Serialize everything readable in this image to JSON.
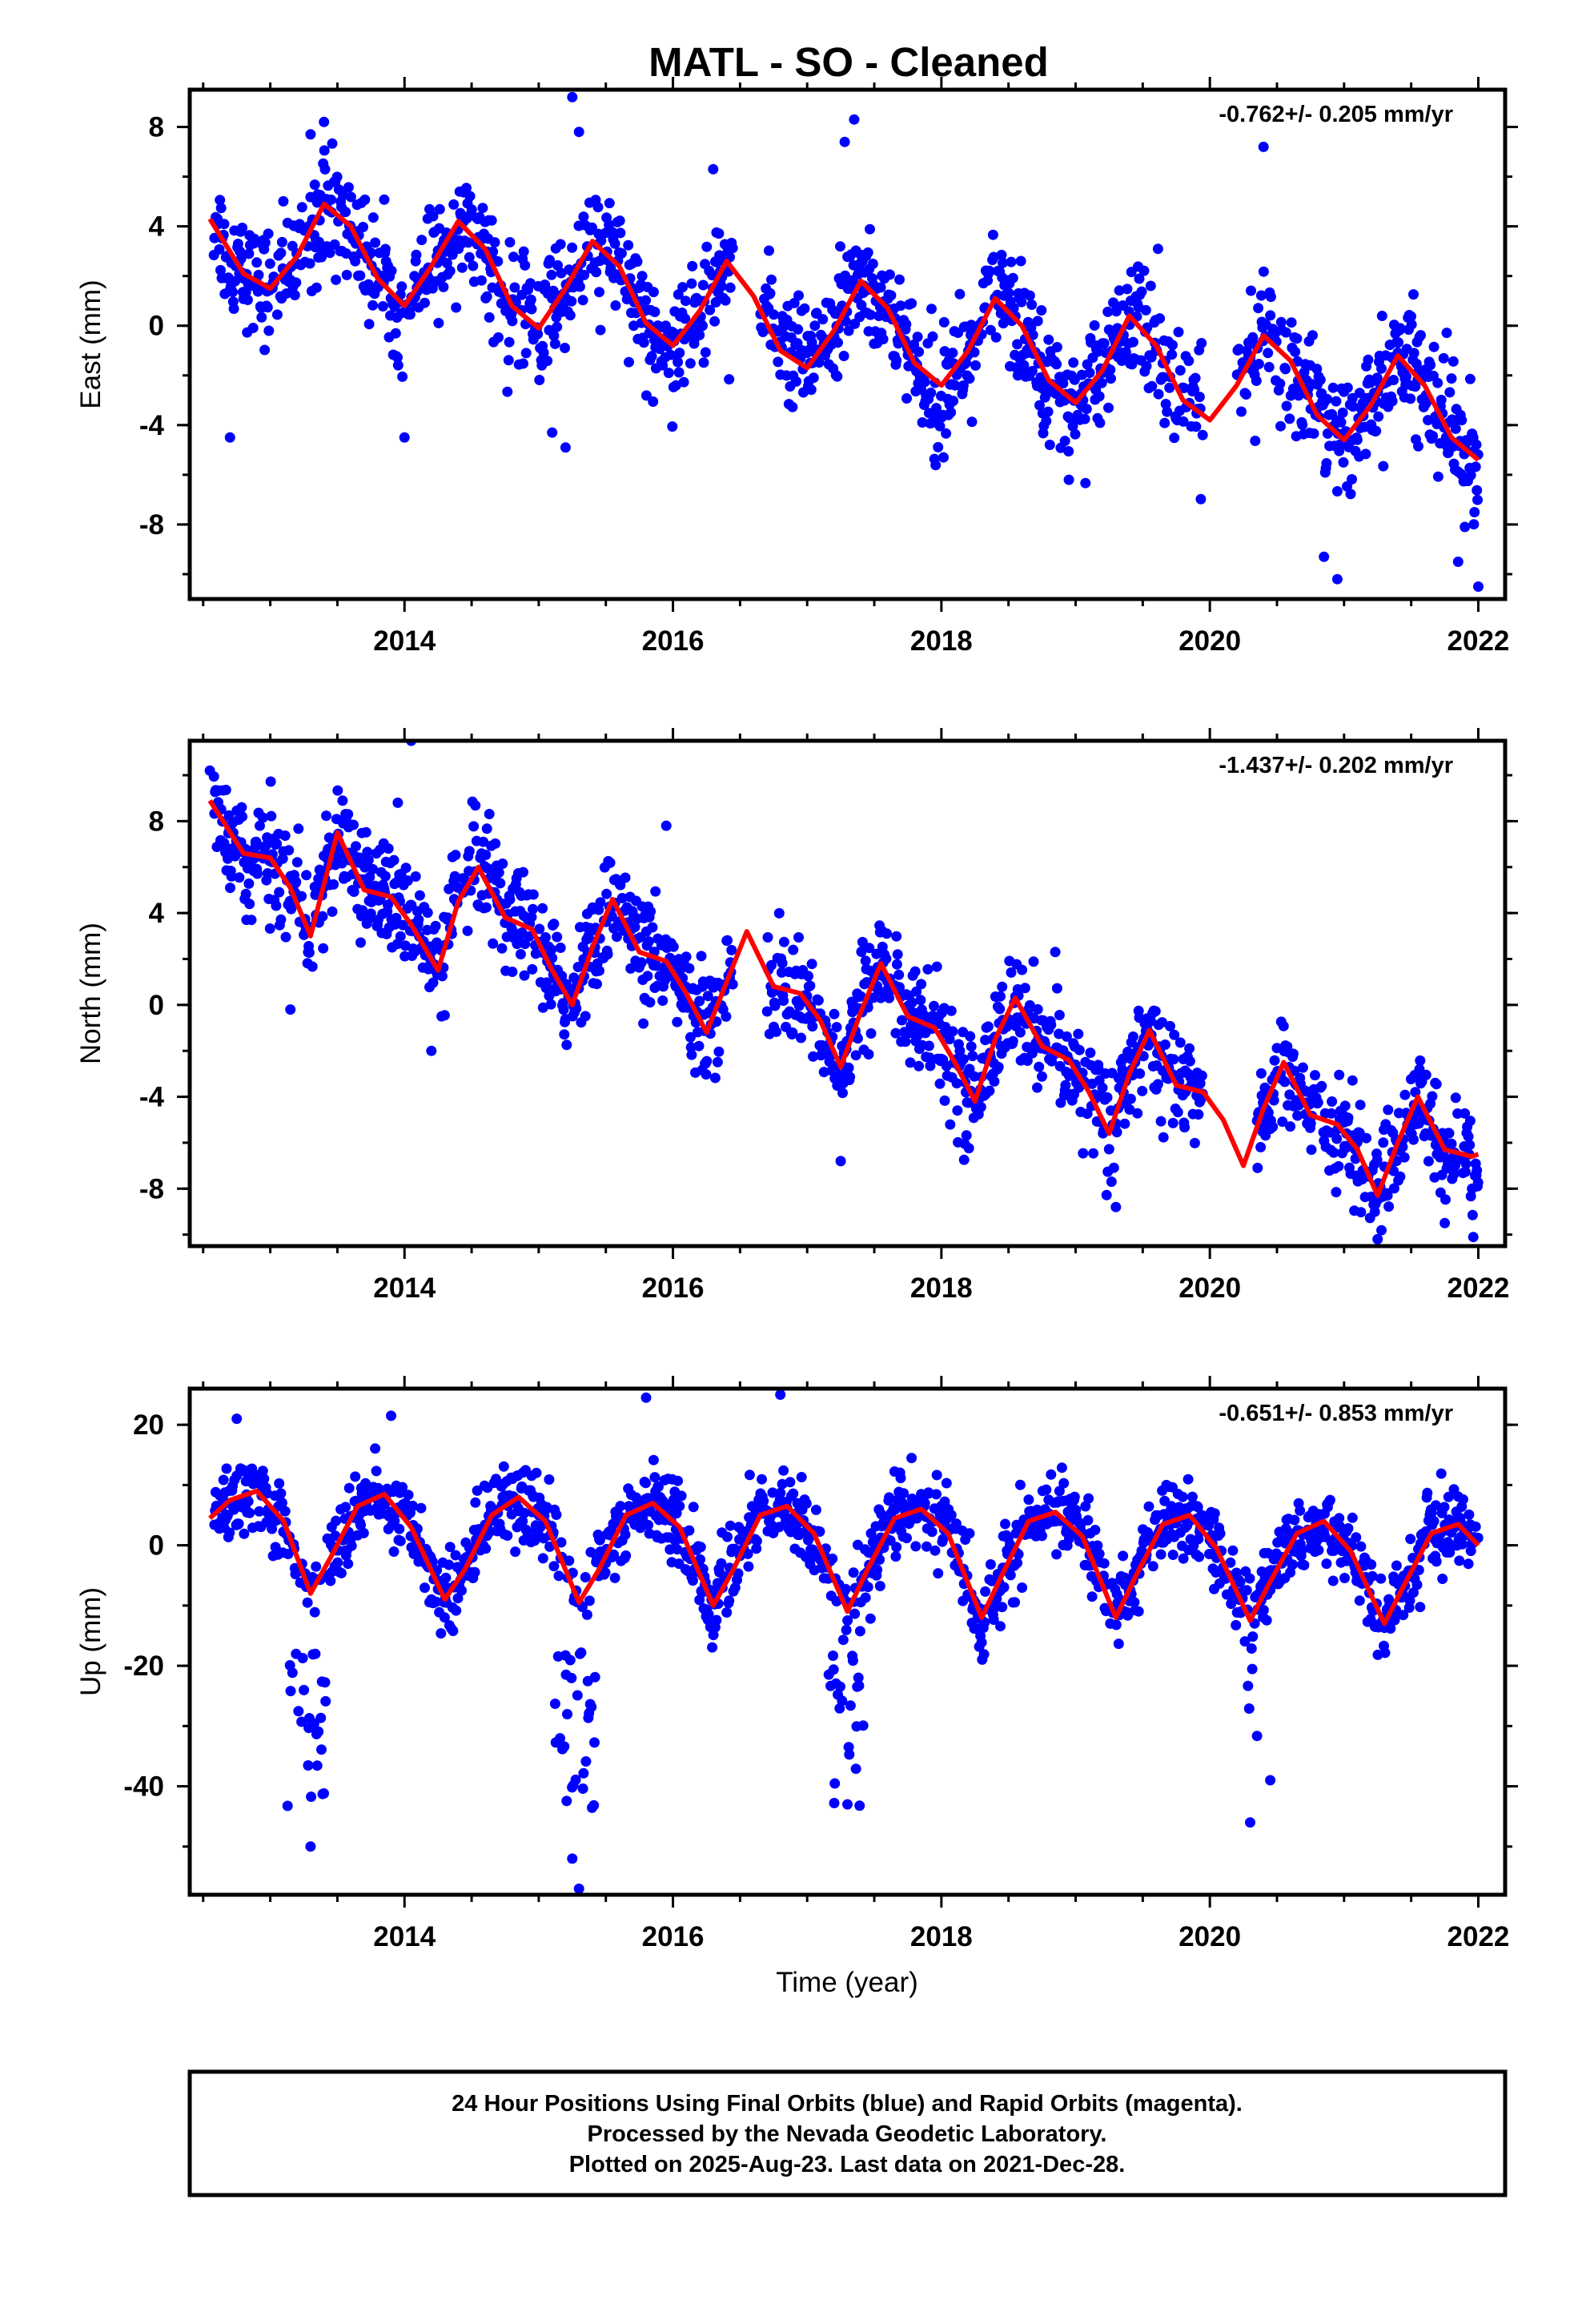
{
  "title": "MATL  - SO - Cleaned",
  "xlabel": "Time (year)",
  "colors": {
    "points": "#0000ff",
    "fit": "#ff0000",
    "frame": "#000000"
  },
  "footer": {
    "line1": "24 Hour Positions Using Final Orbits (blue) and Rapid Orbits (magenta).",
    "line2": "Processed by the Nevada Geodetic Laboratory.",
    "line3": "Plotted on 2025-Aug-23. Last data on 2021-Dec-28."
  },
  "chart_data": [
    {
      "type": "scatter",
      "ylabel": "East (mm)",
      "rate_label": "-0.762+/- 0.205 mm/yr",
      "xlim": [
        2012.4,
        2022.2
      ],
      "ylim": [
        -11,
        9.5
      ],
      "xticks": [
        "2014",
        "2016",
        "2018",
        "2020",
        "2022"
      ],
      "yticks": [
        "8",
        "4",
        "0",
        "-4",
        "-8"
      ],
      "trend": {
        "slope_mm_per_yr": -0.762,
        "start_value": 2.0,
        "start_year": 2012.55,
        "end_year": 2022.0
      },
      "fit_x": [
        2012.55,
        2012.8,
        2013.0,
        2013.2,
        2013.4,
        2013.6,
        2013.8,
        2014.0,
        2014.2,
        2014.4,
        2014.6,
        2014.8,
        2015.0,
        2015.2,
        2015.4,
        2015.6,
        2015.8,
        2016.0,
        2016.2,
        2016.4,
        2016.6,
        2016.8,
        2017.0,
        2017.2,
        2017.4,
        2017.6,
        2017.8,
        2018.0,
        2018.2,
        2018.4,
        2018.6,
        2018.8,
        2019.0,
        2019.2,
        2019.4,
        2019.6,
        2019.8,
        2020.0,
        2020.2,
        2020.4,
        2020.6,
        2020.8,
        2021.0,
        2021.2,
        2021.4,
        2021.6,
        2021.8,
        2022.0
      ],
      "fit_y": [
        4.3,
        2.1,
        1.5,
        2.8,
        4.9,
        4.0,
        1.9,
        0.8,
        2.4,
        4.2,
        3.1,
        0.8,
        -0.1,
        1.5,
        3.4,
        2.4,
        0.1,
        -0.8,
        0.6,
        2.6,
        1.2,
        -1.0,
        -1.7,
        -0.2,
        1.8,
        0.7,
        -1.5,
        -2.4,
        -1.0,
        1.1,
        0.0,
        -2.2,
        -3.1,
        -1.8,
        0.4,
        -0.8,
        -3.0,
        -3.8,
        -2.4,
        -0.4,
        -1.4,
        -3.6,
        -4.6,
        -3.2,
        -1.2,
        -2.4,
        -4.5,
        -5.4
      ],
      "outliers": [
        [
          2013.3,
          7.7
        ],
        [
          2013.4,
          8.2
        ],
        [
          2015.25,
          9.2
        ],
        [
          2015.3,
          7.8
        ],
        [
          2016.3,
          6.3
        ],
        [
          2017.35,
          8.3
        ],
        [
          2017.28,
          7.4
        ],
        [
          2020.4,
          7.2
        ],
        [
          2012.7,
          -4.5
        ],
        [
          2014.0,
          -4.5
        ],
        [
          2015.2,
          -4.9
        ],
        [
          2015.1,
          -4.3
        ],
        [
          2018.95,
          -6.2
        ],
        [
          2020.95,
          -10.2
        ],
        [
          2020.85,
          -9.3
        ],
        [
          2021.85,
          -9.5
        ],
        [
          2022.0,
          -10.5
        ],
        [
          2021.9,
          -8.1
        ]
      ]
    },
    {
      "type": "scatter",
      "ylabel": "North (mm)",
      "rate_label": "-1.437+/- 0.202 mm/yr",
      "xlim": [
        2012.4,
        2022.2
      ],
      "ylim": [
        -10.5,
        11.5
      ],
      "xticks": [
        "2014",
        "2016",
        "2018",
        "2020",
        "2022"
      ],
      "yticks": [
        "8",
        "4",
        "0",
        "-4",
        "-8"
      ],
      "trend": {
        "slope_mm_per_yr": -1.437,
        "start_value": 7.0,
        "start_year": 2012.55,
        "end_year": 2022.0
      },
      "fit_x": [
        2012.55,
        2012.8,
        2013.0,
        2013.15,
        2013.3,
        2013.5,
        2013.7,
        2013.9,
        2014.05,
        2014.25,
        2014.4,
        2014.55,
        2014.75,
        2014.95,
        2015.1,
        2015.25,
        2015.4,
        2015.55,
        2015.75,
        2015.95,
        2016.1,
        2016.25,
        2016.4,
        2016.55,
        2016.75,
        2016.95,
        2017.1,
        2017.25,
        2017.4,
        2017.55,
        2017.75,
        2017.95,
        2018.1,
        2018.25,
        2018.4,
        2018.55,
        2018.75,
        2018.95,
        2019.1,
        2019.25,
        2019.4,
        2019.55,
        2019.75,
        2019.95,
        2020.1,
        2020.25,
        2020.4,
        2020.55,
        2020.75,
        2020.95,
        2021.1,
        2021.25,
        2021.4,
        2021.55,
        2021.75,
        2021.95,
        2022.0
      ],
      "fit_y": [
        8.9,
        6.6,
        6.4,
        5.1,
        3.0,
        7.5,
        5.0,
        4.7,
        3.5,
        1.5,
        4.5,
        6.0,
        3.8,
        3.3,
        1.5,
        0.0,
        2.5,
        4.6,
        2.3,
        1.9,
        0.5,
        -1.2,
        1.0,
        3.2,
        0.8,
        0.5,
        -0.7,
        -2.7,
        -0.3,
        1.8,
        -0.5,
        -1.0,
        -2.5,
        -4.2,
        -1.5,
        0.3,
        -1.8,
        -2.4,
        -3.8,
        -5.6,
        -3.0,
        -1.1,
        -3.5,
        -3.8,
        -5.0,
        -7.0,
        -4.5,
        -2.5,
        -4.8,
        -5.2,
        -6.3,
        -8.3,
        -6.0,
        -4.0,
        -6.3,
        -6.6,
        -6.5
      ],
      "outliers": [
        [
          2014.05,
          11.5
        ],
        [
          2012.55,
          10.2
        ],
        [
          2013.95,
          8.8
        ],
        [
          2015.95,
          7.8
        ],
        [
          2014.2,
          -2.0
        ],
        [
          2013.15,
          -0.2
        ],
        [
          2017.25,
          -6.8
        ],
        [
          2019.3,
          -8.8
        ],
        [
          2021.25,
          -10.2
        ],
        [
          2021.75,
          -9.5
        ]
      ]
    },
    {
      "type": "scatter",
      "ylabel": "Up (mm)",
      "rate_label": "-0.651+/- 0.853 mm/yr",
      "xlim": [
        2012.4,
        2022.2
      ],
      "ylim": [
        -58,
        26
      ],
      "xticks": [
        "2014",
        "2016",
        "2018",
        "2020",
        "2022"
      ],
      "yticks": [
        "20",
        "0",
        "-20",
        "-40"
      ],
      "trend": {
        "slope_mm_per_yr": -0.651,
        "start_value": 0.0,
        "start_year": 2012.55,
        "end_year": 2022.0
      },
      "fit_x": [
        2012.55,
        2012.7,
        2012.9,
        2013.1,
        2013.3,
        2013.45,
        2013.65,
        2013.85,
        2014.05,
        2014.3,
        2014.45,
        2014.65,
        2014.85,
        2015.05,
        2015.3,
        2015.45,
        2015.65,
        2015.85,
        2016.05,
        2016.3,
        2016.45,
        2016.65,
        2016.85,
        2017.05,
        2017.3,
        2017.45,
        2017.65,
        2017.85,
        2018.05,
        2018.3,
        2018.45,
        2018.65,
        2018.85,
        2019.05,
        2019.3,
        2019.45,
        2019.65,
        2019.85,
        2020.05,
        2020.3,
        2020.45,
        2020.65,
        2020.85,
        2021.05,
        2021.3,
        2021.45,
        2021.65,
        2021.85,
        2022.0
      ],
      "fit_y": [
        4.5,
        7.5,
        9.0,
        4.0,
        -8.0,
        -2.0,
        6.5,
        8.5,
        3.0,
        -9.0,
        -4.0,
        5.0,
        8.0,
        4.0,
        -9.5,
        -4.0,
        5.0,
        7.0,
        3.0,
        -10.0,
        -4.0,
        5.0,
        6.5,
        2.0,
        -11.0,
        -4.0,
        4.5,
        6.0,
        2.0,
        -12.0,
        -5.0,
        4.0,
        5.5,
        1.5,
        -12.0,
        -5.0,
        3.5,
        5.0,
        -0.5,
        -12.5,
        -6.0,
        2.0,
        4.0,
        -1.0,
        -13.0,
        -6.5,
        2.0,
        3.5,
        0.0
      ],
      "outliers": [
        [
          2012.75,
          21.0
        ],
        [
          2013.9,
          21.5
        ],
        [
          2015.8,
          24.5
        ],
        [
          2016.8,
          25.0
        ],
        [
          2013.3,
          -50.0
        ],
        [
          2015.3,
          -57.0
        ],
        [
          2015.25,
          -52.0
        ],
        [
          2017.3,
          -43.0
        ],
        [
          2020.3,
          -46.0
        ],
        [
          2020.45,
          -39.0
        ]
      ]
    }
  ]
}
